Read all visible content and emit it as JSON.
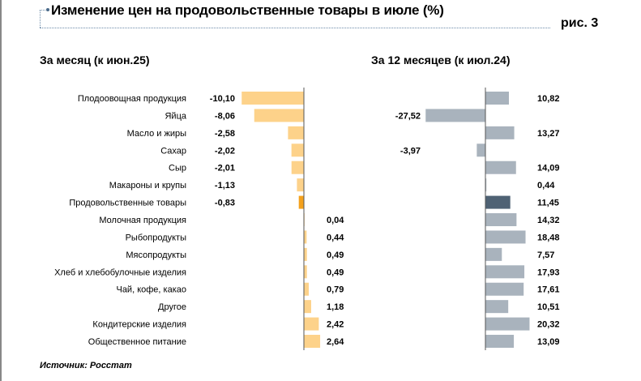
{
  "title": "Изменение цен на продовольственные товары в июле (%)",
  "figure_label": "рис. 3",
  "source": "Источник: Росстат",
  "colors": {
    "month": "#fdd28a",
    "month_highlight": "#f4a11d",
    "year": "#a9b3bd",
    "year_highlight": "#4f6274",
    "axis": "#555555"
  },
  "chart_data": [
    {
      "type": "bar",
      "orientation": "horizontal",
      "title": "За месяц (к июн.25)",
      "categories": [
        "Плодоовощная продукция",
        "Яйца",
        "Масло и жиры",
        "Сахар",
        "Сыр",
        "Макароны и крупы",
        "Продовольственные товары",
        "Молочная продукция",
        "Рыбопродукты",
        "Мясопродукты",
        "Хлеб и хлебобулочные изделия",
        "Чай, кофе, какао",
        "Другое",
        "Кондитерские изделия",
        "Общественное питание"
      ],
      "values": [
        -10.1,
        -8.06,
        -2.58,
        -2.02,
        -2.01,
        -1.13,
        -0.83,
        0.04,
        0.44,
        0.49,
        0.49,
        0.79,
        1.18,
        2.42,
        2.64
      ],
      "labels": [
        "-10,10",
        "-8,06",
        "-2,58",
        "-2,02",
        "-2,01",
        "-1,13",
        "-0,83",
        "0,04",
        "0,44",
        "0,49",
        "0,49",
        "0,79",
        "1,18",
        "2,42",
        "2,64"
      ],
      "highlight_index": 6
    },
    {
      "type": "bar",
      "orientation": "horizontal",
      "title": "За 12 месяцев (к июл.24)",
      "values": [
        10.82,
        -27.52,
        13.27,
        -3.97,
        14.09,
        0.44,
        11.45,
        14.32,
        18.48,
        7.57,
        17.93,
        17.61,
        10.51,
        20.32,
        13.09
      ],
      "labels": [
        "10,82",
        "-27,52",
        "13,27",
        "-3,97",
        "14,09",
        "0,44",
        "11,45",
        "14,32",
        "18,48",
        "7,57",
        "17,93",
        "17,61",
        "10,51",
        "20,32",
        "13,09"
      ],
      "highlight_index": 6
    }
  ]
}
